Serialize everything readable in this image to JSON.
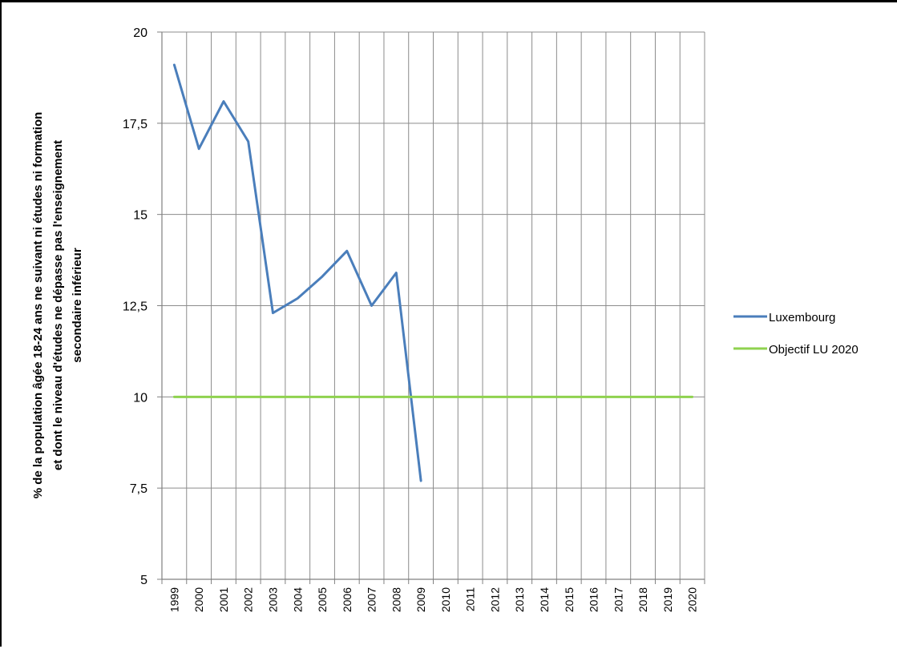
{
  "chart_data": {
    "type": "line",
    "title": "",
    "xlabel": "",
    "ylabel_lines": [
      "% de la population âgée 18-24 ans ne suivant ni études ni formation",
      "et dont le niveau d'études ne dépasse pas l'enseignement",
      "secondaire inférieur"
    ],
    "categories": [
      "1999",
      "2000",
      "2001",
      "2002",
      "2003",
      "2004",
      "2005",
      "2006",
      "2007",
      "2008",
      "2009",
      "2010",
      "2011",
      "2012",
      "2013",
      "2014",
      "2015",
      "2016",
      "2017",
      "2018",
      "2019",
      "2020"
    ],
    "ylim": [
      5,
      20
    ],
    "yticks": [
      5,
      7.5,
      10,
      12.5,
      15,
      17.5,
      20
    ],
    "ytick_labels": [
      "5",
      "7,5",
      "10",
      "12,5",
      "15",
      "17,5",
      "20"
    ],
    "grid": true,
    "legend_position": "right",
    "series": [
      {
        "name": "Luxembourg",
        "color": "#4a7ebb",
        "values": [
          19.1,
          16.8,
          18.1,
          17.0,
          12.3,
          12.7,
          13.3,
          14.0,
          12.5,
          13.4,
          7.7,
          null,
          null,
          null,
          null,
          null,
          null,
          null,
          null,
          null,
          null,
          null
        ]
      },
      {
        "name": "Objectif LU 2020",
        "color": "#8fd24f",
        "values": [
          10,
          10,
          10,
          10,
          10,
          10,
          10,
          10,
          10,
          10,
          10,
          10,
          10,
          10,
          10,
          10,
          10,
          10,
          10,
          10,
          10,
          10
        ]
      }
    ]
  }
}
